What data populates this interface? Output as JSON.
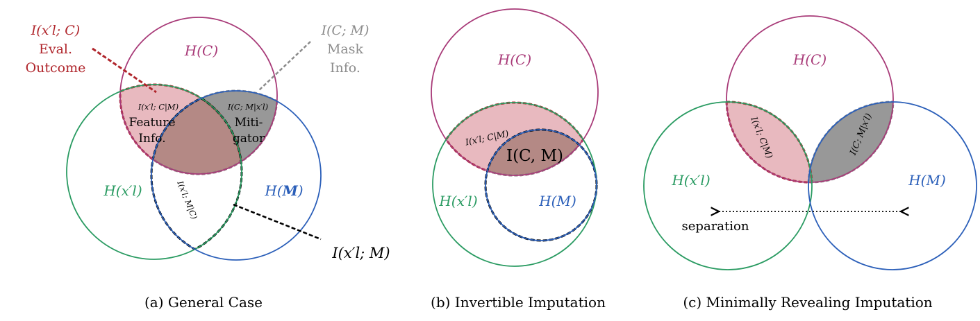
{
  "colors": {
    "c_circle": "#a83a78",
    "x_circle": "#2a9b62",
    "m_circle": "#2b5fb9",
    "red_fill": "#e8b9bf",
    "red_text": "#b0262c",
    "gray_fill": "#989898",
    "gray_text": "#8c8c8c",
    "overlap_fill": "#b48985"
  },
  "panel_a": {
    "caption": "(a) General Case",
    "label_c": "H(C)",
    "label_x_main": "H(x",
    "label_x_tail": "′l)",
    "label_m_main": "H(",
    "label_m_bold": "M",
    "label_m_tail": ")",
    "eval_formula": "I(x′l; C)",
    "eval_line1": "Eval.",
    "eval_line2": "Outcome",
    "mask_formula": "I(C; M)",
    "mask_line1": "Mask",
    "mask_line2": "Info.",
    "feature_formula": "I(x′l; C|M)",
    "feature_line1": "Feature",
    "feature_line2": "Info.",
    "mitigator_formula": "I(C; M|x′l)",
    "mitigator_line1": "Miti-",
    "mitigator_line2": "gator",
    "xm_rotated": "I(x′l; M|C)",
    "xm_callout": "I(x′l; M)"
  },
  "panel_b": {
    "caption": "(b) Invertible Imputation",
    "label_c": "H(C)",
    "label_x": "H(x′l)",
    "label_m": "H(M)",
    "feature_formula": "I(x′l; C|M)",
    "cm_formula": "I(C, M)"
  },
  "panel_c": {
    "caption": "(c) Minimally Revealing Imputation",
    "label_c": "H(C)",
    "label_x": "H(x′l)",
    "label_m": "H(M)",
    "feature_rotated": "I(x′l; C|M)",
    "mitigator_rotated": "I(C; M|x′l)",
    "separation": "separation"
  }
}
